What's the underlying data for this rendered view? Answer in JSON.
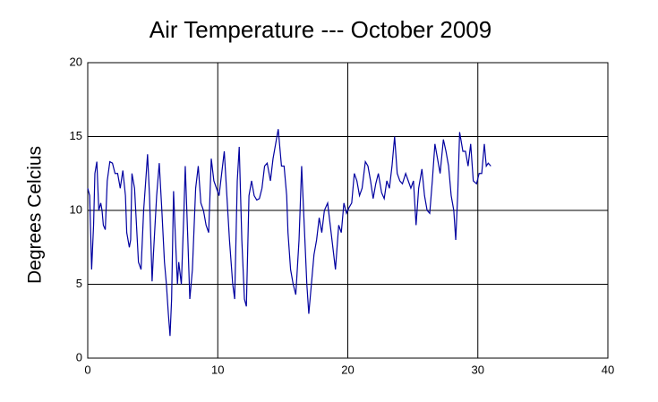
{
  "chart_data": {
    "type": "line",
    "title": "Air Temperature --- October 2009",
    "ylabel": "Degrees Celcius",
    "x": [
      0,
      0.15,
      0.3,
      0.45,
      0.55,
      0.7,
      0.85,
      1.0,
      1.1,
      1.2,
      1.35,
      1.5,
      1.7,
      1.9,
      2.1,
      2.3,
      2.5,
      2.7,
      2.9,
      3.0,
      3.2,
      3.3,
      3.4,
      3.6,
      3.75,
      3.9,
      4.1,
      4.3,
      4.5,
      4.6,
      4.75,
      4.95,
      5.05,
      5.3,
      5.5,
      5.7,
      5.9,
      6.05,
      6.2,
      6.33,
      6.45,
      6.6,
      6.75,
      6.9,
      7.0,
      7.2,
      7.4,
      7.5,
      7.7,
      7.85,
      8.05,
      8.3,
      8.5,
      8.7,
      8.9,
      9.1,
      9.3,
      9.5,
      9.7,
      9.9,
      10.1,
      10.3,
      10.5,
      10.7,
      10.9,
      11.15,
      11.3,
      11.5,
      11.65,
      11.85,
      12.05,
      12.2,
      12.4,
      12.6,
      12.8,
      13.0,
      13.2,
      13.4,
      13.6,
      13.8,
      14.05,
      14.25,
      14.45,
      14.65,
      14.9,
      15.1,
      15.3,
      15.4,
      15.6,
      15.8,
      16.0,
      16.25,
      16.45,
      16.65,
      16.85,
      17.0,
      17.2,
      17.4,
      17.6,
      17.8,
      18.0,
      18.2,
      18.45,
      18.65,
      18.85,
      19.05,
      19.3,
      19.5,
      19.7,
      19.9,
      20.1,
      20.3,
      20.5,
      20.7,
      20.9,
      21.1,
      21.35,
      21.55,
      21.75,
      21.95,
      22.15,
      22.35,
      22.6,
      22.8,
      23.0,
      23.2,
      23.4,
      23.6,
      23.8,
      24.0,
      24.2,
      24.45,
      24.65,
      24.85,
      25.05,
      25.25,
      25.45,
      25.7,
      25.9,
      26.1,
      26.3,
      26.5,
      26.7,
      26.9,
      27.1,
      27.35,
      27.55,
      27.75,
      27.95,
      28.15,
      28.3,
      28.45,
      28.6,
      28.85,
      29.05,
      29.25,
      29.45,
      29.65,
      29.9,
      30.1,
      30.3,
      30.5,
      30.65,
      30.8,
      31.0
    ],
    "series": [
      {
        "name": "Air Temperature",
        "color": "#0000a0",
        "values": [
          11.5,
          11,
          6,
          9,
          12.5,
          13.3,
          10,
          10.5,
          10,
          9,
          8.7,
          12,
          13.3,
          13.2,
          12.5,
          12.5,
          11.5,
          12.7,
          11,
          8.5,
          7.5,
          8,
          12.5,
          11.5,
          9,
          6.5,
          6,
          10,
          12.5,
          13.8,
          11,
          5.2,
          7,
          11,
          13.2,
          10,
          6.5,
          5,
          3,
          1.5,
          4,
          11.3,
          8,
          5,
          6.5,
          5,
          10,
          13,
          8,
          4,
          6,
          11.5,
          13,
          10.5,
          10,
          9,
          8.5,
          13.5,
          12,
          11.5,
          11,
          12.5,
          14,
          11,
          8,
          5,
          4,
          12,
          14.3,
          8,
          4,
          3.5,
          11,
          12,
          11,
          10.7,
          10.8,
          11.5,
          13,
          13.2,
          12,
          13.5,
          14.5,
          15.5,
          13,
          13,
          11,
          8.5,
          6,
          5,
          4.3,
          8,
          13,
          9,
          5,
          3,
          5,
          7,
          8,
          9.5,
          8.5,
          10,
          10.5,
          9,
          7.5,
          6,
          9,
          8.5,
          10.5,
          9.8,
          10.2,
          10.5,
          12.5,
          12,
          11,
          11.5,
          13.3,
          13,
          12,
          10.8,
          11.8,
          12.5,
          11.2,
          10.8,
          12,
          11.5,
          13,
          15,
          12.5,
          12,
          11.8,
          12.5,
          12,
          11.5,
          12,
          9,
          11.5,
          12.8,
          11,
          10,
          9.8,
          12,
          14.5,
          13.5,
          12.5,
          14.8,
          14,
          13,
          11,
          10,
          8,
          11,
          15.3,
          14,
          14,
          13,
          14.5,
          12,
          11.8,
          12.5,
          12.5,
          14.5,
          13,
          13.2,
          13
        ]
      }
    ],
    "xlim": [
      0,
      40
    ],
    "xticks": [
      0,
      10,
      20,
      30,
      40
    ],
    "ylim": [
      0,
      20
    ],
    "yticks": [
      0,
      5,
      10,
      15,
      20
    ],
    "grid": true
  }
}
